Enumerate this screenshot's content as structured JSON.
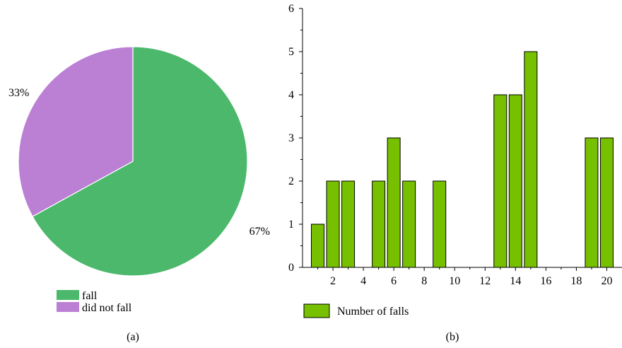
{
  "chart_data": [
    {
      "panel": "(a)",
      "type": "pie",
      "slices": [
        {
          "name": "fall",
          "value": 67,
          "label": "67%",
          "color": "#4cb86c"
        },
        {
          "name": "did not fall",
          "value": 33,
          "label": "33%",
          "color": "#bb7fd4"
        }
      ],
      "legend": {
        "placement": "bottom-left",
        "entries": [
          "fall",
          "did not fall"
        ]
      }
    },
    {
      "panel": "(b)",
      "type": "bar",
      "x": [
        1,
        2,
        3,
        4,
        5,
        6,
        7,
        8,
        9,
        10,
        11,
        12,
        13,
        14,
        15,
        16,
        17,
        18,
        19,
        20
      ],
      "series": [
        {
          "name": "Number of falls",
          "color": "#77c000",
          "values": [
            1,
            2,
            2,
            0,
            2,
            3,
            2,
            0,
            2,
            0,
            0,
            0,
            4,
            4,
            5,
            0,
            0,
            0,
            3,
            3
          ]
        }
      ],
      "xlim": [
        0,
        21
      ],
      "ylim": [
        0,
        6
      ],
      "xticks": [
        2,
        4,
        6,
        8,
        10,
        12,
        14,
        16,
        18,
        20
      ],
      "xtick_labels": [
        "2",
        "4",
        "6",
        "8",
        "10",
        "12",
        "14",
        "16",
        "18",
        "20"
      ],
      "yticks": [
        0,
        1,
        2,
        3,
        4,
        5,
        6
      ],
      "ytick_labels": [
        "0",
        "1",
        "2",
        "3",
        "4",
        "5",
        "6"
      ],
      "grid": false,
      "legend": {
        "placement": "bottom-left",
        "entries": [
          "Number of falls"
        ]
      }
    }
  ]
}
